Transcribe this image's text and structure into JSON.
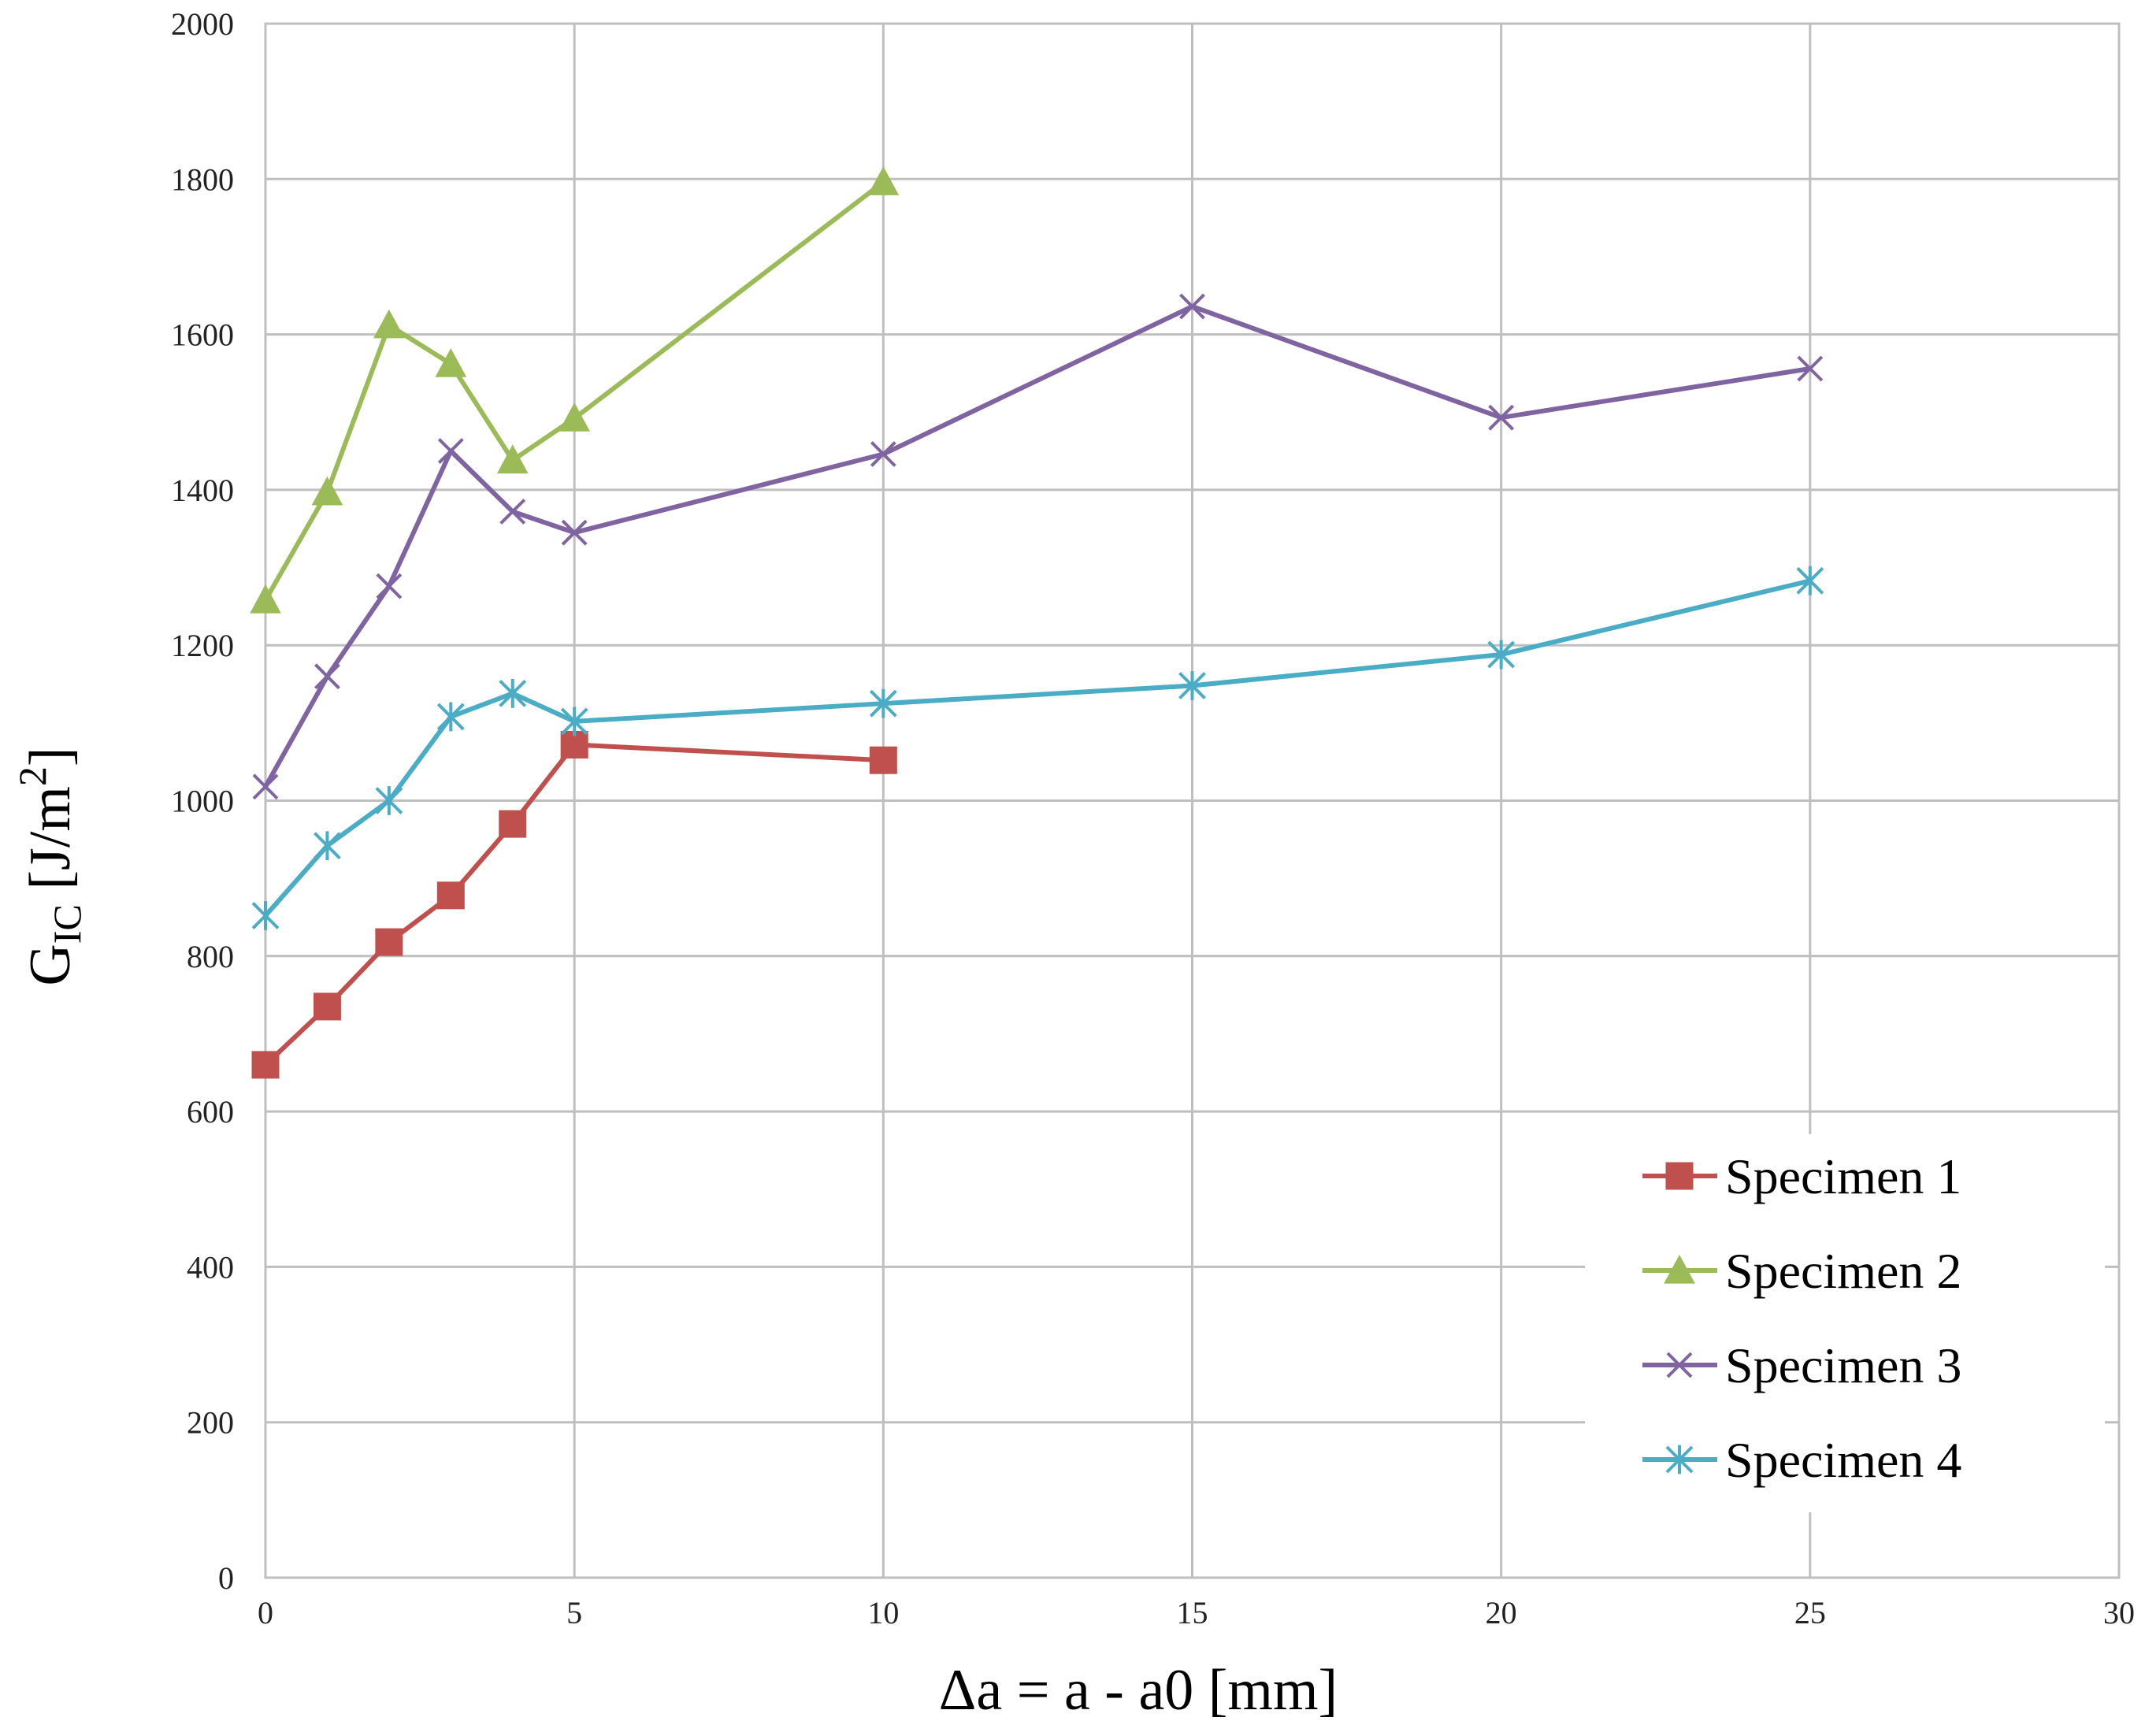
{
  "chart_data": {
    "type": "line",
    "title": "",
    "xlabel": "Δa = a - a0  [mm]",
    "ylabel": {
      "main": "G",
      "sub": "IC",
      "units_pre": " [J/m",
      "sup": "2",
      "units_post": "]"
    },
    "xlim": [
      0,
      30
    ],
    "ylim": [
      0,
      2000
    ],
    "xticks": [
      0,
      5,
      10,
      15,
      20,
      25,
      30
    ],
    "yticks": [
      0,
      200,
      400,
      600,
      800,
      1000,
      1200,
      1400,
      1600,
      1800,
      2000
    ],
    "grid": true,
    "legend_position": "bottom-right",
    "series": [
      {
        "name": "Specimen 1",
        "color": "#c0504d",
        "marker": "square",
        "x": [
          0,
          1,
          2,
          3,
          4,
          5,
          10
        ],
        "y": [
          660,
          735,
          818,
          878,
          970,
          1072,
          1052
        ]
      },
      {
        "name": "Specimen 2",
        "color": "#9bbb59",
        "marker": "triangle",
        "x": [
          0,
          1,
          2,
          3,
          4,
          5,
          10
        ],
        "y": [
          1258,
          1397,
          1612,
          1562,
          1438,
          1492,
          1796
        ]
      },
      {
        "name": "Specimen 3",
        "color": "#8064a2",
        "marker": "x",
        "x": [
          0,
          1,
          2,
          3,
          4,
          5,
          10,
          15,
          20,
          25
        ],
        "y": [
          1018,
          1160,
          1276,
          1450,
          1372,
          1345,
          1446,
          1636,
          1493,
          1556
        ]
      },
      {
        "name": "Specimen 4",
        "color": "#4bacc6",
        "marker": "star",
        "x": [
          0,
          1,
          2,
          3,
          4,
          5,
          10,
          15,
          20,
          25
        ],
        "y": [
          852,
          942,
          1000,
          1108,
          1138,
          1102,
          1125,
          1148,
          1188,
          1283
        ]
      }
    ]
  }
}
